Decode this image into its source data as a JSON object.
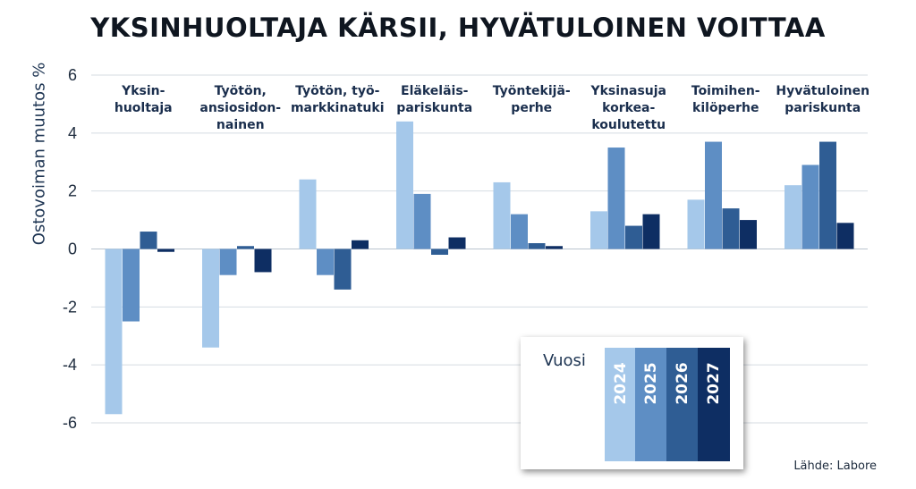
{
  "chart_data": {
    "type": "bar",
    "title": "YKSINHUOLTAJA KÄRSII, HYVÄTULOINEN VOITTAA",
    "ylabel": "Ostovoiman muutos %",
    "ylim": [
      -6,
      6
    ],
    "yticks": [
      "6",
      "4",
      "2",
      "0",
      "-2",
      "-4",
      "-6"
    ],
    "grid": true,
    "categories": [
      [
        "Yksin-",
        "huoltaja"
      ],
      [
        "Työtön,",
        "ansiosidon-",
        "nainen"
      ],
      [
        "Työtön, työ-",
        "markkinatuki"
      ],
      [
        "Eläkeläis-",
        "pariskunta"
      ],
      [
        "Työntekijä-",
        "perhe"
      ],
      [
        "Yksinasuja",
        "korkea-",
        "koulutettu"
      ],
      [
        "Toimihen-",
        "kilöperhe"
      ],
      [
        "Hyvätuloinen",
        "pariskunta"
      ]
    ],
    "series": [
      {
        "name": "2024",
        "color": "#a5c8ea",
        "values": [
          -5.7,
          -3.4,
          2.4,
          4.4,
          2.3,
          1.3,
          1.7,
          2.2
        ]
      },
      {
        "name": "2025",
        "color": "#5e8ec4",
        "values": [
          -2.5,
          -0.9,
          -0.9,
          1.9,
          1.2,
          3.5,
          3.7,
          2.9
        ]
      },
      {
        "name": "2026",
        "color": "#2f5d94",
        "values": [
          0.6,
          0.1,
          -1.4,
          -0.2,
          0.2,
          0.8,
          1.4,
          3.7
        ]
      },
      {
        "name": "2027",
        "color": "#0e2e63",
        "values": [
          -0.1,
          -0.8,
          0.3,
          0.4,
          0.1,
          1.2,
          1.0,
          0.9
        ]
      }
    ],
    "legend": {
      "title": "Vuosi",
      "placement": "bottom-right"
    },
    "source": "Lähde: Labore"
  }
}
